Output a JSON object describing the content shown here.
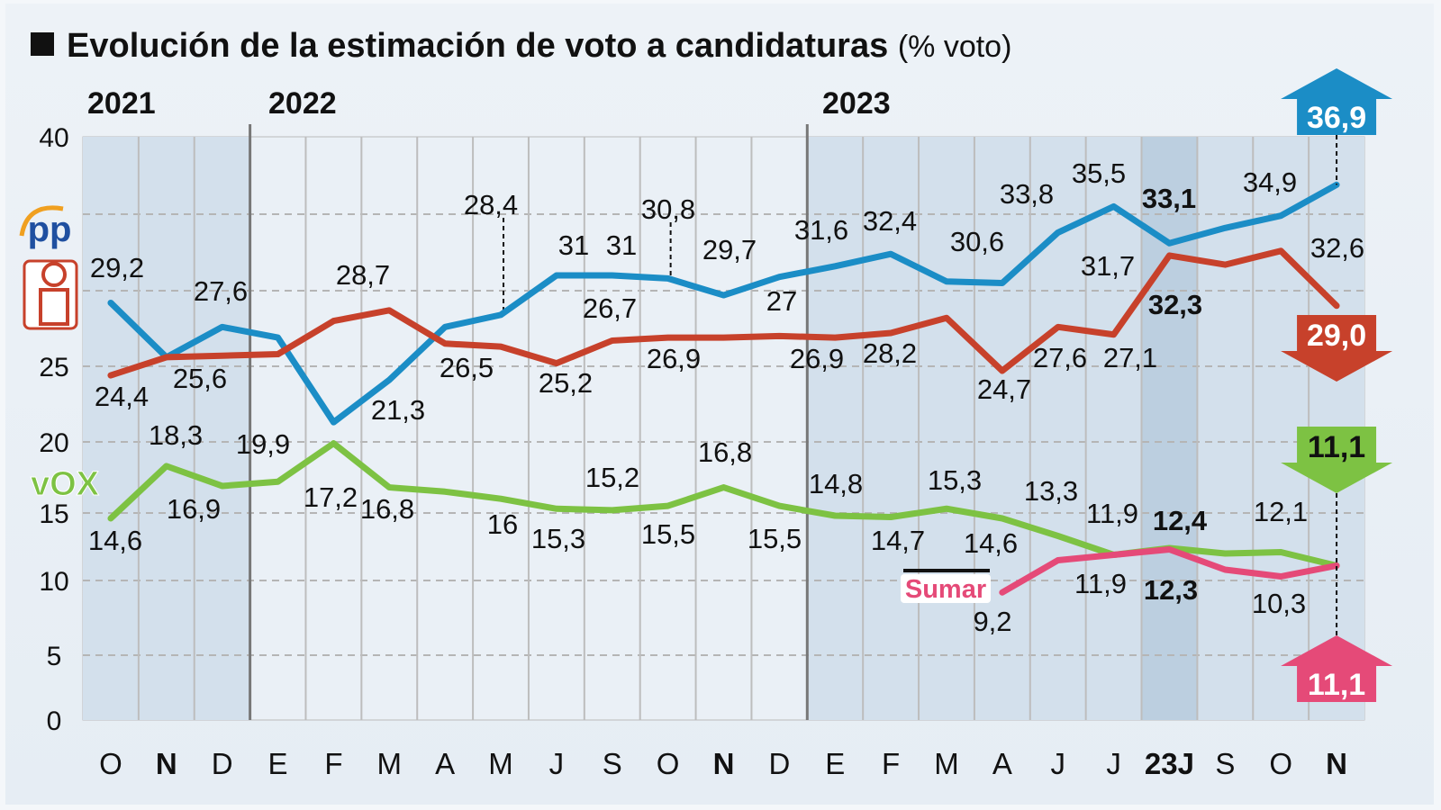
{
  "title": "Evolución de la estimación de voto a candidaturas",
  "unit": "(% voto)",
  "years": [
    "2021",
    "2022",
    "2023"
  ],
  "logos": {
    "pp": "PP",
    "psoe": "PSOE",
    "vox": "VOX",
    "sumar": "Sumar"
  },
  "chart_data": {
    "type": "line",
    "title": "Evolución de la estimación de voto a candidaturas",
    "ylabel": "% voto",
    "ylim": [
      0,
      40
    ],
    "yticks": [
      "0",
      "5",
      "10",
      "15",
      "20",
      "25",
      "40"
    ],
    "grid": true,
    "categories": [
      "O",
      "N",
      "D",
      "E",
      "F",
      "M",
      "A",
      "M",
      "J",
      "S",
      "O",
      "N",
      "D",
      "E",
      "F",
      "M",
      "A",
      "J",
      "J",
      "23J",
      "S",
      "O",
      "N"
    ],
    "bold_categories": [
      "23J",
      "N"
    ],
    "series": [
      {
        "name": "PP",
        "color": "#1b8dc6",
        "values": [
          29.2,
          25.6,
          27.6,
          26.9,
          21.3,
          24.1,
          27.6,
          28.4,
          31,
          31,
          30.8,
          29.7,
          30.9,
          31.6,
          32.4,
          30.6,
          30.5,
          33.8,
          35.5,
          33.1,
          34.1,
          34.9,
          36.9
        ],
        "labels": [
          "29,2",
          null,
          "27,6",
          null,
          "21,3",
          null,
          null,
          "28,4",
          "31",
          "31",
          "30,8",
          "29,7",
          null,
          "31,6",
          "32,4",
          "30,6",
          null,
          "33,8",
          "35,5",
          "33,1",
          null,
          "34,9",
          "36,9"
        ]
      },
      {
        "name": "PSOE",
        "color": "#c7412b",
        "values": [
          24.4,
          25.6,
          25.7,
          25.8,
          28.0,
          28.7,
          26.5,
          26.3,
          25.2,
          26.7,
          26.9,
          26.9,
          27,
          26.9,
          27.2,
          28.2,
          24.7,
          27.6,
          27.1,
          32.3,
          31.7,
          32.6,
          29.0
        ],
        "labels": [
          "24,4",
          "25,6",
          null,
          null,
          null,
          "28,7",
          "26,5",
          null,
          "25,2",
          "26,7",
          "26,9",
          null,
          "27",
          "26,9",
          null,
          "28,2",
          "24,7",
          "27,6",
          "27,1",
          "32,3",
          "31,7",
          "32,6",
          "29,0"
        ]
      },
      {
        "name": "VOX",
        "color": "#7dc243",
        "values": [
          14.6,
          18.3,
          16.9,
          17.2,
          19.9,
          16.8,
          16.5,
          16,
          15.3,
          15.2,
          15.5,
          16.8,
          15.5,
          14.8,
          14.7,
          15.3,
          14.6,
          13.3,
          11.9,
          12.4,
          12.0,
          12.1,
          11.1
        ],
        "labels": [
          "14,6",
          "18,3",
          "16,9",
          "17,2",
          "19,9",
          "16,8",
          null,
          "16",
          "15,3",
          "15,2",
          "15,5",
          "16,8",
          "15,5",
          "14,8",
          "14,7",
          "15,3",
          "14,6",
          "13,3",
          "11,9",
          "12,4",
          null,
          "12,1",
          "11,1"
        ]
      },
      {
        "name": "Sumar",
        "color": "#e54a78",
        "values": [
          null,
          null,
          null,
          null,
          null,
          null,
          null,
          null,
          null,
          null,
          null,
          null,
          null,
          null,
          null,
          null,
          9.2,
          11.5,
          11.9,
          12.3,
          10.8,
          10.3,
          11.1
        ],
        "labels": [
          null,
          null,
          null,
          null,
          null,
          null,
          null,
          null,
          null,
          null,
          null,
          null,
          null,
          null,
          null,
          null,
          "9,2",
          null,
          "11,9",
          "12,3",
          null,
          "10,3",
          "11,1"
        ]
      }
    ]
  }
}
